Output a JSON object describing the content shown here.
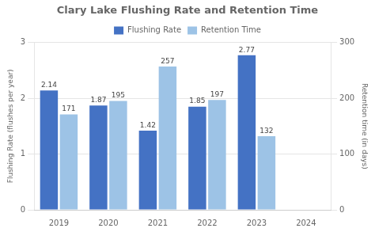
{
  "chart_data": {
    "type": "bar",
    "title": "Clary Lake Flushing Rate and Retention Time",
    "categories": [
      "2019",
      "2020",
      "2021",
      "2022",
      "2023",
      "2024"
    ],
    "series": [
      {
        "name": "Flushing Rate",
        "color": "#4472c4",
        "values": [
          2.14,
          1.87,
          1.42,
          1.85,
          2.77,
          null
        ]
      },
      {
        "name": "Retention Time",
        "color": "#9dc3e6",
        "values": [
          171,
          195,
          257,
          197,
          132,
          null
        ],
        "axis": "y2"
      }
    ],
    "ylabel": "Flushing Rate (flushes per year)",
    "y2label": "Retention time (in days)",
    "ylim": [
      0,
      3
    ],
    "yticks": [
      0,
      1,
      2,
      3
    ],
    "y2lim": [
      0,
      300
    ],
    "y2ticks": [
      0,
      100,
      200,
      300
    ],
    "grid": true,
    "legend": "top",
    "data_labels": true
  }
}
